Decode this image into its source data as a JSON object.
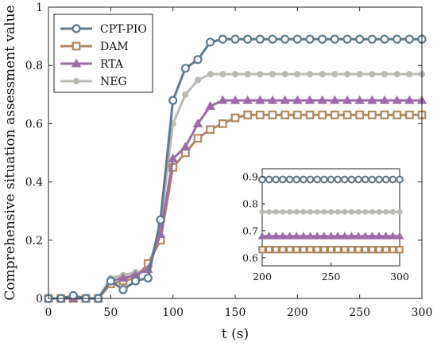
{
  "chart_data": {
    "type": "line",
    "xlabel": "t (s)",
    "ylabel": "Comprehensive situation assessment value",
    "xlim": [
      0,
      300
    ],
    "ylim": [
      0,
      1
    ],
    "xticks": [
      0,
      50,
      100,
      150,
      200,
      250,
      300
    ],
    "yticks": [
      0,
      0.2,
      0.4,
      0.6,
      0.8,
      1
    ],
    "grid": false,
    "legend_position": "top-left",
    "x": [
      0,
      10,
      20,
      30,
      40,
      50,
      60,
      70,
      80,
      90,
      100,
      110,
      120,
      130,
      140,
      150,
      160,
      170,
      180,
      190,
      200,
      210,
      220,
      230,
      240,
      250,
      260,
      270,
      280,
      290,
      300
    ],
    "series": [
      {
        "name": "CPT-PIO",
        "color": "#5f7a8c",
        "marker": "circle",
        "values": [
          0,
          0,
          0.01,
          0,
          0,
          0.06,
          0.03,
          0.06,
          0.07,
          0.27,
          0.68,
          0.79,
          0.82,
          0.88,
          0.89,
          0.89,
          0.89,
          0.89,
          0.89,
          0.89,
          0.89,
          0.89,
          0.89,
          0.89,
          0.89,
          0.89,
          0.89,
          0.89,
          0.89,
          0.89,
          0.89
        ]
      },
      {
        "name": "DAM",
        "color": "#b0865e",
        "marker": "square",
        "values": [
          0,
          0,
          0,
          0,
          0,
          0.05,
          0.06,
          0.07,
          0.12,
          0.2,
          0.45,
          0.5,
          0.55,
          0.58,
          0.6,
          0.62,
          0.63,
          0.63,
          0.63,
          0.63,
          0.63,
          0.63,
          0.63,
          0.63,
          0.63,
          0.63,
          0.63,
          0.63,
          0.63,
          0.63,
          0.63
        ]
      },
      {
        "name": "RTA",
        "color": "#9b6ca8",
        "marker": "triangle",
        "values": [
          0,
          0,
          0,
          0,
          0,
          0.06,
          0.07,
          0.08,
          0.1,
          0.22,
          0.48,
          0.52,
          0.6,
          0.66,
          0.68,
          0.68,
          0.68,
          0.68,
          0.68,
          0.68,
          0.68,
          0.68,
          0.68,
          0.68,
          0.68,
          0.68,
          0.68,
          0.68,
          0.68,
          0.68,
          0.68
        ]
      },
      {
        "name": "NEG",
        "color": "#b8bbb4",
        "marker": "dot",
        "values": [
          0,
          0,
          0,
          0,
          0,
          0.07,
          0.08,
          0.09,
          0.1,
          0.25,
          0.6,
          0.7,
          0.75,
          0.77,
          0.77,
          0.77,
          0.77,
          0.77,
          0.77,
          0.77,
          0.77,
          0.77,
          0.77,
          0.77,
          0.77,
          0.77,
          0.77,
          0.77,
          0.77,
          0.77,
          0.77
        ]
      }
    ],
    "inset": {
      "xlim": [
        200,
        300
      ],
      "ylim": [
        0.57,
        0.93
      ],
      "xticks": [
        200,
        250,
        300
      ],
      "yticks": [
        0.6,
        0.7,
        0.8,
        0.9
      ],
      "ytick_labels": [
        "0.6",
        "0.7",
        "0.8",
        "0.9"
      ]
    }
  }
}
